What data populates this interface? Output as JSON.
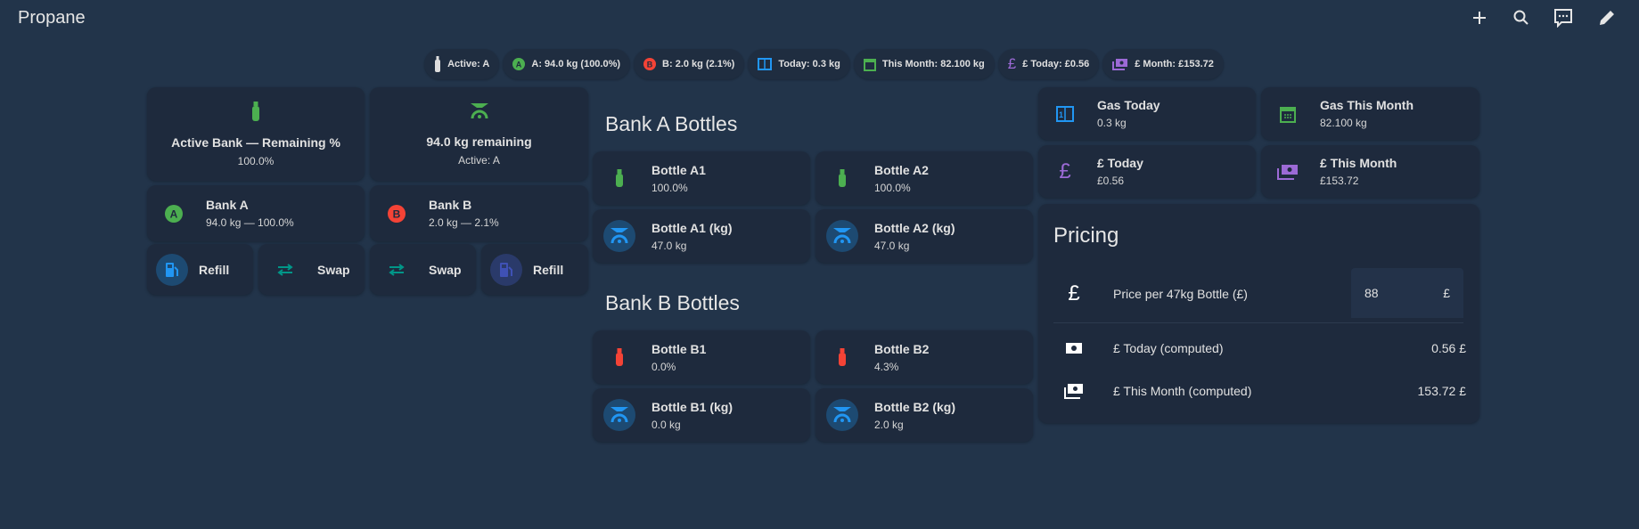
{
  "header": {
    "title": "Propane",
    "actions": [
      "add",
      "search",
      "assist",
      "edit"
    ]
  },
  "chips": [
    {
      "icon": "gas-cylinder-icon",
      "label": "Active: A"
    },
    {
      "icon": "letter-a-icon",
      "label": "A: 94.0 kg (100.0%)"
    },
    {
      "icon": "letter-b-icon",
      "label": "B: 2.0 kg (2.1%)"
    },
    {
      "icon": "counter-icon",
      "label": "Today: 0.3 kg"
    },
    {
      "icon": "calendar-icon",
      "label": "This Month: 82.100 kg"
    },
    {
      "icon": "pound-icon",
      "label": "£ Today: £0.56"
    },
    {
      "icon": "cash-multiple-icon",
      "label": "£ Month: £153.72"
    }
  ],
  "summary": {
    "active_pct": {
      "title": "Active Bank — Remaining %",
      "value": "100.0%"
    },
    "remaining": {
      "title": "94.0 kg remaining",
      "value": "Active: A"
    },
    "bank_a": {
      "title": "Bank A",
      "value": "94.0 kg — 100.0%"
    },
    "bank_b": {
      "title": "Bank B",
      "value": "2.0 kg — 2.1%"
    },
    "buttons": [
      "Refill",
      "Swap",
      "Swap",
      "Refill"
    ]
  },
  "bank_a": {
    "title": "Bank A Bottles",
    "tiles": [
      {
        "title": "Bottle A1",
        "value": "100.0%"
      },
      {
        "title": "Bottle A2",
        "value": "100.0%"
      },
      {
        "title": "Bottle A1 (kg)",
        "value": "47.0 kg"
      },
      {
        "title": "Bottle A2 (kg)",
        "value": "47.0 kg"
      }
    ]
  },
  "bank_b": {
    "title": "Bank B Bottles",
    "tiles": [
      {
        "title": "Bottle B1",
        "value": "0.0%"
      },
      {
        "title": "Bottle B2",
        "value": "4.3%"
      },
      {
        "title": "Bottle B1 (kg)",
        "value": "0.0 kg"
      },
      {
        "title": "Bottle B2 (kg)",
        "value": "2.0 kg"
      }
    ]
  },
  "stats": [
    {
      "title": "Gas Today",
      "value": "0.3 kg"
    },
    {
      "title": "Gas This Month",
      "value": "82.100 kg"
    },
    {
      "title": "£ Today",
      "value": "£0.56"
    },
    {
      "title": "£ This Month",
      "value": "£153.72"
    }
  ],
  "pricing": {
    "title": "Pricing",
    "price_label": "Price per 47kg Bottle (£)",
    "price_value": "88",
    "price_unit": "£",
    "today_label": "£ Today (computed)",
    "today_value": "0.56 £",
    "month_label": "£ This Month (computed)",
    "month_value": "153.72 £"
  },
  "colors": {
    "green": "#4caf50",
    "red": "#f44336",
    "blue": "#2196f3",
    "purple": "#9c6ad6",
    "teal": "#009688",
    "indigo": "#3f51b5"
  }
}
